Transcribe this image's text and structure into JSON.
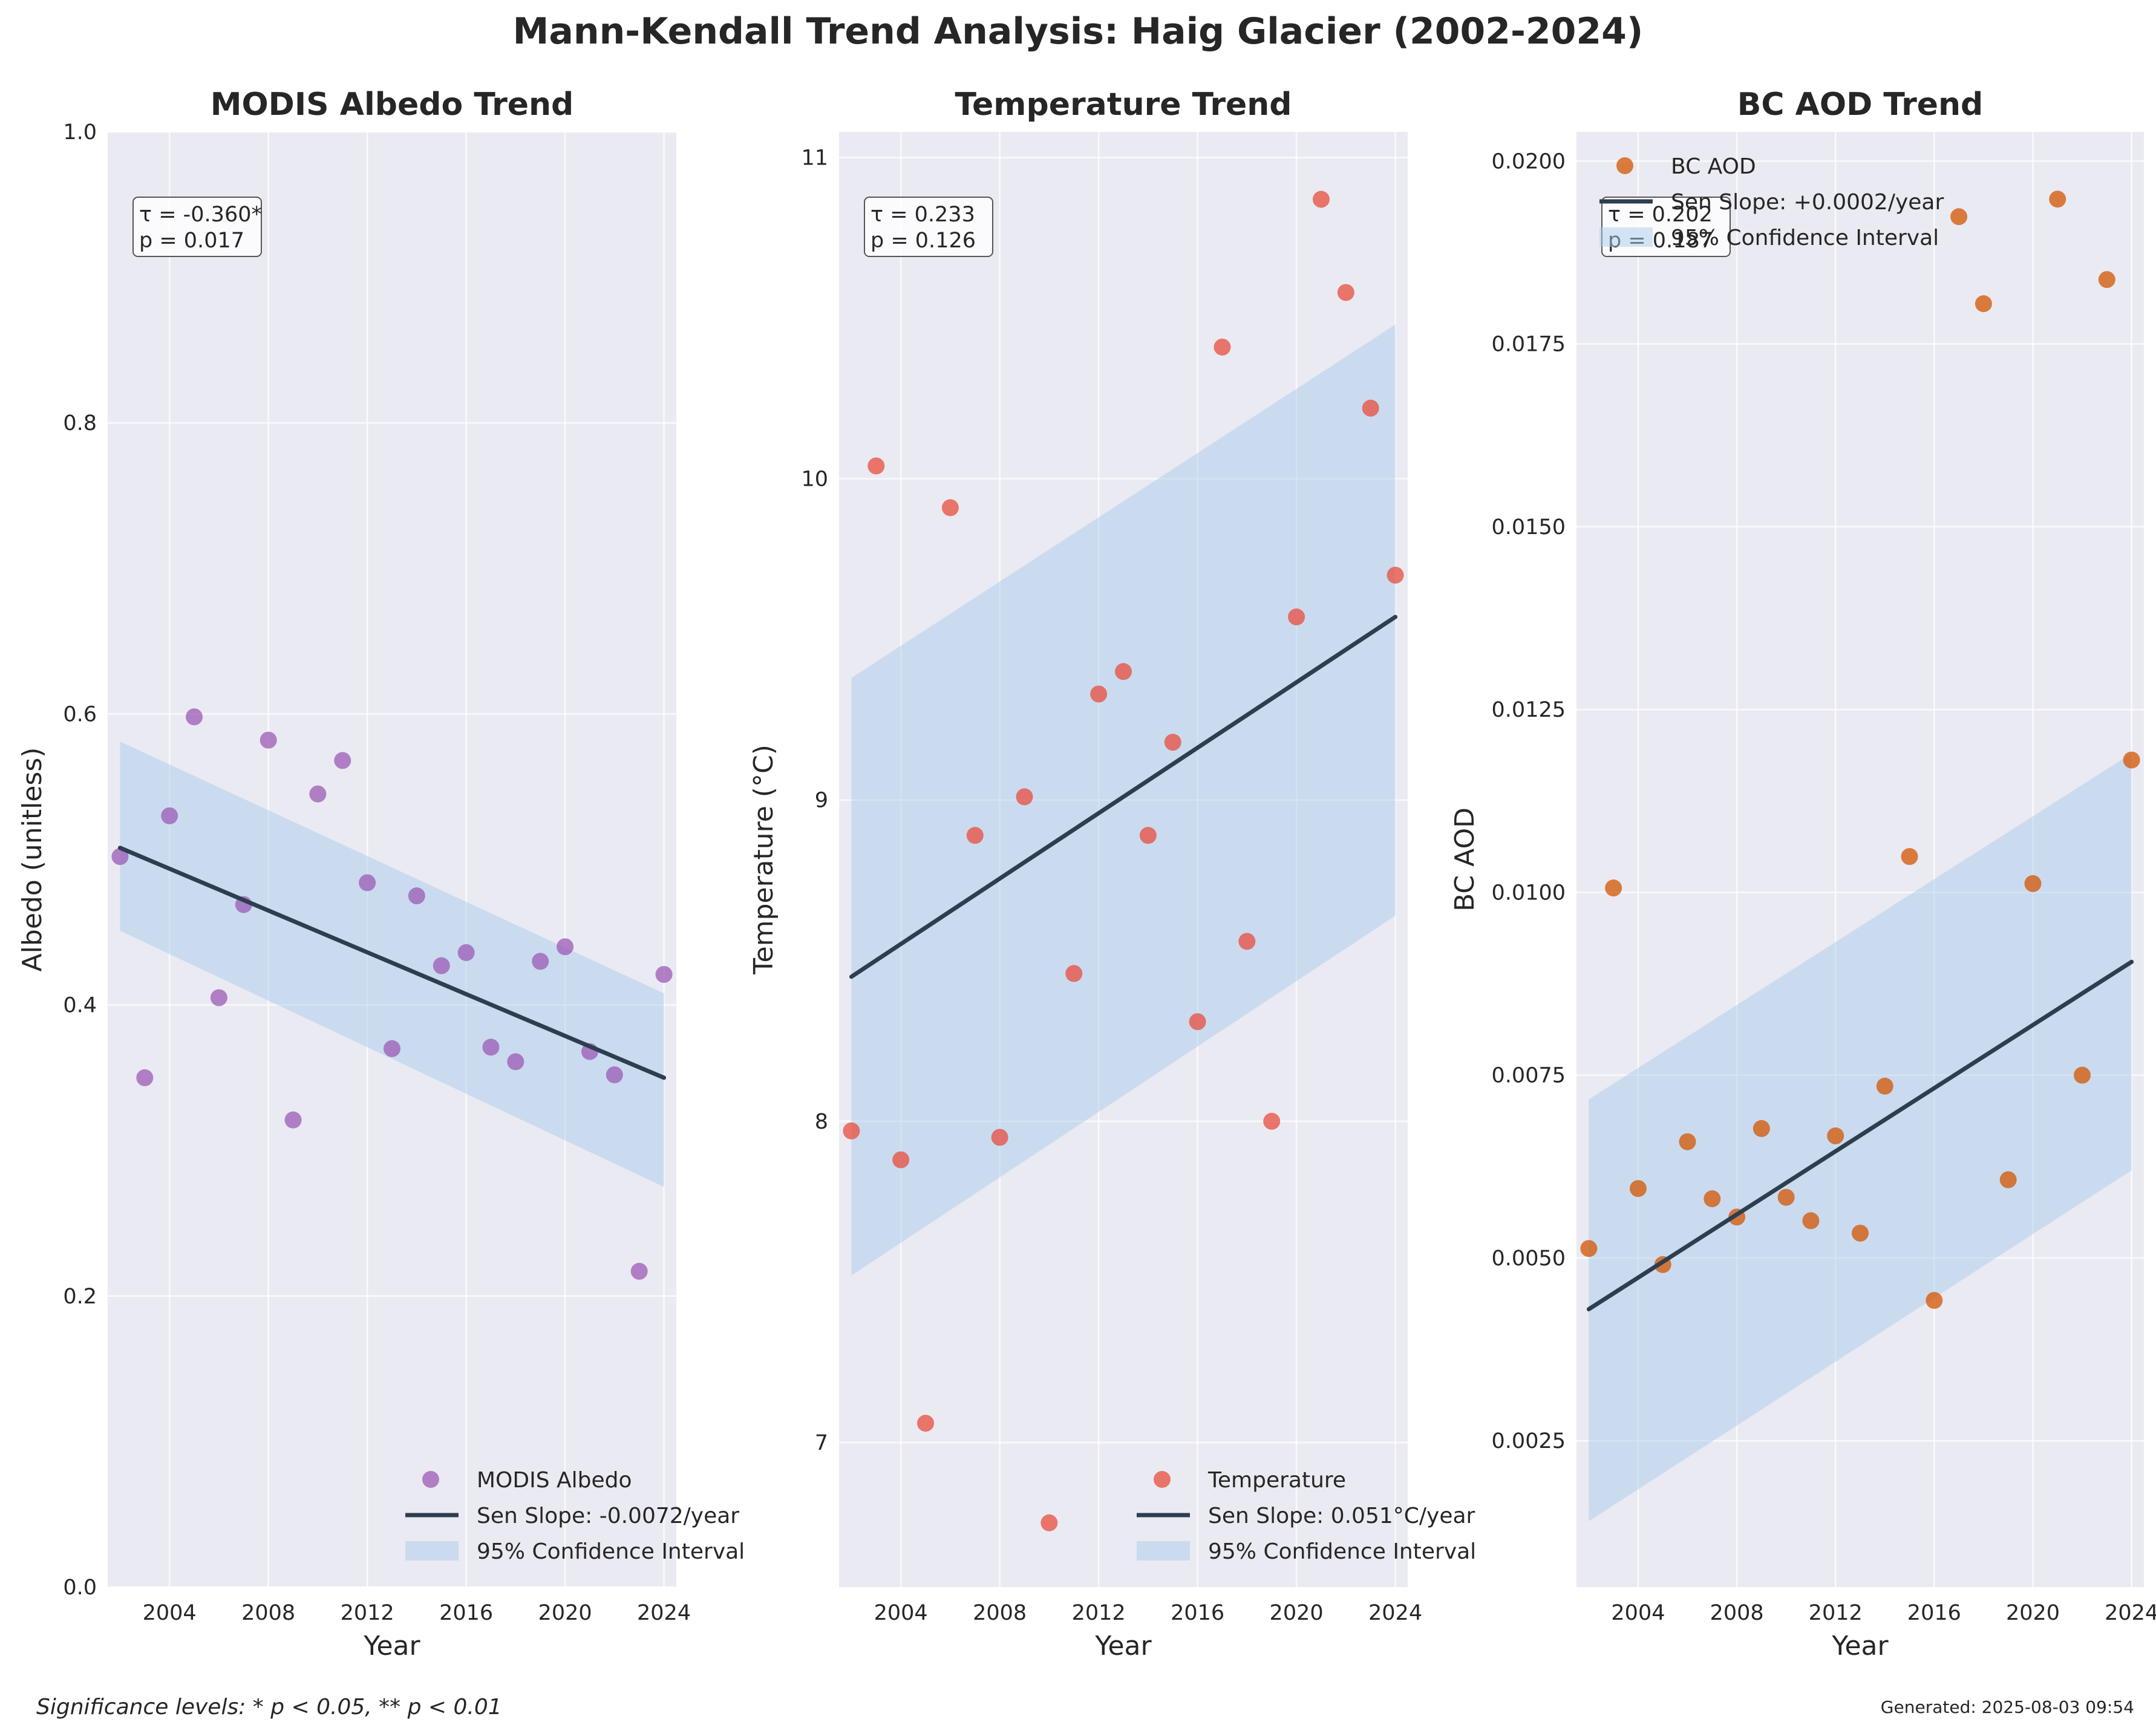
{
  "figure": {
    "suptitle": "Mann-Kendall Trend Analysis: Haig Glacier (2002-2024)",
    "footnote": "Significance levels: * p < 0.05, ** p < 0.01",
    "generated": "Generated: 2025-08-03 09:54"
  },
  "colors": {
    "panel_bg": "#eaeaf2",
    "grid": "#ffffff",
    "trend_line": "#2c3e50",
    "ci_fill": "#a9cbeb"
  },
  "chart_data": [
    {
      "type": "scatter",
      "title": "MODIS Albedo Trend",
      "xlabel": "Year",
      "ylabel": "Albedo (unitless)",
      "xlim": [
        2001.5,
        2024.5
      ],
      "ylim": [
        0,
        1.0
      ],
      "xticks": [
        2004,
        2008,
        2012,
        2016,
        2020,
        2024
      ],
      "yticks": [
        0,
        0.2,
        0.4,
        0.6,
        0.8,
        1.0
      ],
      "ytick_labels": [
        "0.0",
        "0.2",
        "0.4",
        "0.6",
        "0.8",
        "1.0"
      ],
      "grid": true,
      "point_color": "#9b59b6",
      "x": [
        2002,
        2003,
        2004,
        2005,
        2006,
        2007,
        2008,
        2009,
        2010,
        2011,
        2012,
        2013,
        2014,
        2015,
        2016,
        2017,
        2018,
        2019,
        2020,
        2021,
        2022,
        2023,
        2024
      ],
      "y": [
        0.502,
        0.35,
        0.53,
        0.598,
        0.405,
        0.469,
        0.582,
        0.321,
        0.545,
        0.568,
        0.484,
        0.37,
        0.475,
        0.427,
        0.436,
        0.371,
        0.361,
        0.43,
        0.44,
        0.368,
        0.352,
        0.217,
        0.421
      ],
      "trend": {
        "x": [
          2002,
          2024
        ],
        "y": [
          0.508,
          0.35
        ]
      },
      "ci": {
        "x": [
          2002,
          2024
        ],
        "upper": [
          0.581,
          0.408
        ],
        "lower": [
          0.451,
          0.275
        ]
      },
      "stats": {
        "tau": "τ = -0.360*",
        "p": "p = 0.017"
      },
      "legend": {
        "position": "lower right",
        "series": "MODIS Albedo",
        "sen": "Sen Slope: -0.0072/year",
        "ci": "95% Confidence Interval"
      }
    },
    {
      "type": "scatter",
      "title": "Temperature Trend",
      "xlabel": "Year",
      "ylabel": "Temperature (°C)",
      "xlim": [
        2001.5,
        2024.5
      ],
      "ylim": [
        6.55,
        11.08
      ],
      "xticks": [
        2004,
        2008,
        2012,
        2016,
        2020,
        2024
      ],
      "yticks": [
        7,
        8,
        9,
        10,
        11
      ],
      "ytick_labels": [
        "7",
        "8",
        "9",
        "10",
        "11"
      ],
      "grid": true,
      "point_color": "#e74c3c",
      "x": [
        2002,
        2003,
        2004,
        2005,
        2006,
        2007,
        2008,
        2009,
        2010,
        2011,
        2012,
        2013,
        2014,
        2015,
        2016,
        2017,
        2018,
        2019,
        2020,
        2021,
        2022,
        2023,
        2024
      ],
      "y": [
        7.97,
        10.04,
        7.88,
        7.06,
        9.91,
        8.89,
        7.95,
        9.01,
        6.75,
        8.46,
        9.33,
        9.4,
        8.89,
        9.18,
        8.31,
        10.41,
        8.56,
        8.0,
        9.57,
        10.87,
        10.58,
        10.22,
        9.7
      ],
      "trend": {
        "x": [
          2002,
          2024
        ],
        "y": [
          8.45,
          9.57
        ]
      },
      "ci": {
        "x": [
          2002,
          2024
        ],
        "upper": [
          9.38,
          10.48
        ],
        "lower": [
          7.52,
          8.64
        ]
      },
      "stats": {
        "tau": "τ = 0.233",
        "p": "p = 0.126"
      },
      "legend": {
        "position": "lower right",
        "series": "Temperature",
        "sen": "Sen Slope: 0.051°C/year",
        "ci": "95% Confidence Interval"
      }
    },
    {
      "type": "scatter",
      "title": "BC AOD Trend",
      "xlabel": "Year",
      "ylabel": "BC AOD",
      "xlim": [
        2001.5,
        2024.5
      ],
      "ylim": [
        0.0005,
        0.0204
      ],
      "xticks": [
        2004,
        2008,
        2012,
        2016,
        2020,
        2024
      ],
      "yticks": [
        0.0025,
        0.005,
        0.0075,
        0.01,
        0.0125,
        0.015,
        0.0175,
        0.02
      ],
      "ytick_labels": [
        "0.0025",
        "0.0050",
        "0.0075",
        "0.0100",
        "0.0125",
        "0.0150",
        "0.0175",
        "0.0200"
      ],
      "grid": true,
      "point_color": "#d35400",
      "x": [
        2002,
        2003,
        2004,
        2005,
        2006,
        2007,
        2008,
        2009,
        2010,
        2011,
        2012,
        2013,
        2014,
        2015,
        2016,
        2017,
        2018,
        2019,
        2020,
        2021,
        2022,
        2023,
        2024
      ],
      "y": [
        0.00513,
        0.01006,
        0.00595,
        0.00491,
        0.00659,
        0.00581,
        0.00556,
        0.00677,
        0.00583,
        0.00551,
        0.00667,
        0.00534,
        0.00735,
        0.01049,
        0.00442,
        0.01924,
        0.01805,
        0.00607,
        0.01012,
        0.01948,
        0.0075,
        0.01838,
        0.01181
      ],
      "trend": {
        "x": [
          2002,
          2024
        ],
        "y": [
          0.0043,
          0.00905
        ]
      },
      "ci": {
        "x": [
          2002,
          2024
        ],
        "upper": [
          0.00717,
          0.0119
        ],
        "lower": [
          0.0014,
          0.0062
        ]
      },
      "stats": {
        "tau": "τ = 0.202",
        "p": "p = 0.187"
      },
      "legend": {
        "position": "upper left",
        "series": "BC AOD",
        "sen": "Sen Slope: +0.0002/year",
        "ci": "95% Confidence Interval"
      }
    }
  ]
}
